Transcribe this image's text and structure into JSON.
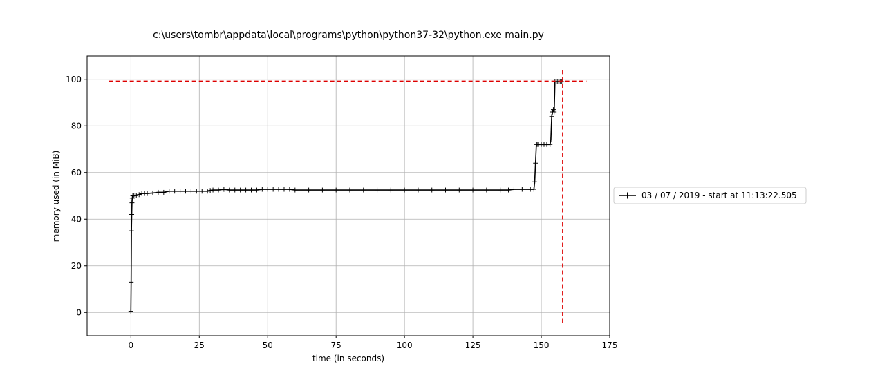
{
  "chart_data": {
    "type": "line",
    "title": "c:\\users\\tombr\\appdata\\local\\programs\\python\\python37-32\\python.exe main.py",
    "xlabel": "time (in seconds)",
    "ylabel": "memory used (in MiB)",
    "xlim": [
      -16,
      175
    ],
    "ylim": [
      -10,
      110
    ],
    "xticks": [
      0,
      25,
      50,
      75,
      100,
      125,
      150,
      175
    ],
    "yticks": [
      0,
      20,
      40,
      60,
      80,
      100
    ],
    "grid": true,
    "legend_position": "right",
    "series": [
      {
        "name": "03 / 07 / 2019 - start at 11:13:22.505",
        "color": "#000000",
        "marker": "plus",
        "x": [
          0.0,
          0.1,
          0.2,
          0.3,
          0.4,
          0.5,
          0.7,
          1.0,
          1.5,
          2,
          3,
          4,
          5,
          6,
          8,
          10,
          12,
          14,
          16,
          18,
          20,
          22,
          24,
          26,
          28,
          29,
          30,
          32,
          34,
          36,
          38,
          40,
          42,
          44,
          46,
          48,
          50,
          52,
          54,
          56,
          58,
          60,
          65,
          70,
          75,
          80,
          85,
          90,
          95,
          100,
          105,
          110,
          115,
          120,
          125,
          130,
          135,
          138,
          140,
          143,
          146,
          147.3,
          147.6,
          147.9,
          148.2,
          148.5,
          149,
          150,
          151,
          152,
          153.2,
          153.5,
          153.8,
          154.1,
          154.4,
          154.7,
          155,
          155.5,
          156,
          156.5,
          157,
          157.5
        ],
        "y": [
          0.5,
          13,
          35,
          42,
          47,
          49,
          50,
          50,
          50,
          50.3,
          50.5,
          51,
          51,
          51,
          51.2,
          51.5,
          51.5,
          52,
          52,
          52,
          52,
          52,
          52,
          52,
          52,
          52.3,
          52.5,
          52.5,
          52.8,
          52.5,
          52.5,
          52.5,
          52.5,
          52.5,
          52.5,
          52.8,
          52.8,
          52.8,
          52.8,
          52.8,
          52.8,
          52.5,
          52.5,
          52.5,
          52.5,
          52.5,
          52.5,
          52.5,
          52.5,
          52.5,
          52.5,
          52.5,
          52.5,
          52.5,
          52.5,
          52.5,
          52.5,
          52.5,
          52.8,
          52.8,
          52.8,
          52.8,
          56,
          64,
          72,
          72,
          72,
          72,
          72,
          72,
          72,
          74,
          84,
          86,
          87,
          86,
          99,
          99,
          99,
          99,
          99,
          99
        ]
      }
    ],
    "annotations": [
      {
        "type": "hline",
        "y": 99.2,
        "xmin": -8,
        "xmax": 166.5,
        "color": "#dd0000",
        "style": "dashed"
      },
      {
        "type": "vline",
        "x": 157.8,
        "ymin": -4.5,
        "ymax": 104,
        "color": "#dd0000",
        "style": "dashed"
      }
    ]
  }
}
